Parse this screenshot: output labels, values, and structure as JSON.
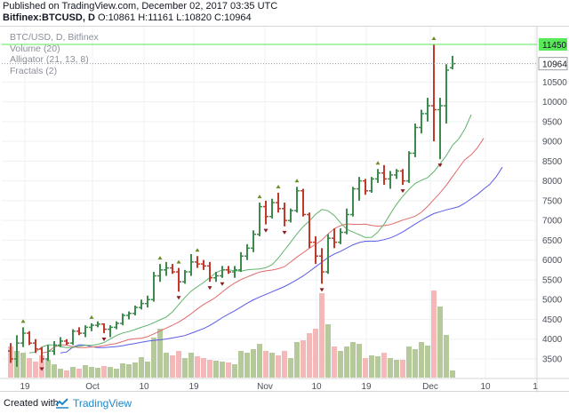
{
  "header": {
    "published_line": "Published on TradingView.com, December 02, 2017 03:35 UTC",
    "symbol": "Bitfinex:BTCUSD, D",
    "ohlc": "O:10861 H:11161 L:10820 C:10964"
  },
  "legend": {
    "title": "BTC/USD, D, Bitfinex",
    "volume": "Volume (20)",
    "alligator": "Alligator (21, 13, 8)",
    "fractals": "Fractals (2)"
  },
  "footer": {
    "created_with": "Created with",
    "brand": "TradingView"
  },
  "colors": {
    "up": "#3d8a4f",
    "down": "#c0392b",
    "jaw": "#5b5be8",
    "teeth": "#e06a6a",
    "lips": "#5fb36a",
    "vol_up": "#b5c99a",
    "vol_down": "#f4b8b8",
    "high_line": "#59e859",
    "price_tag": "#ffffff"
  },
  "chart_data": {
    "type": "ohlc-bars",
    "price_axis": [
      "11450",
      "10964",
      "10500",
      "10000",
      "9500",
      "9000",
      "8500",
      "8000",
      "7500",
      "7000",
      "6500",
      "6000",
      "5500",
      "5000",
      "4500",
      "4000",
      "3500"
    ],
    "time_axis": [
      "19",
      "Oct",
      "10",
      "19",
      "Nov",
      "10",
      "19",
      "Dec",
      "10",
      "1"
    ],
    "ylim": [
      3000,
      11750
    ],
    "high_marker": 11450,
    "last_price": 10964,
    "bars": [
      {
        "o": 3700,
        "h": 3900,
        "l": 3400,
        "c": 3500,
        "v": 0.35
      },
      {
        "o": 3500,
        "h": 4100,
        "l": 3300,
        "c": 3900,
        "v": 0.3
      },
      {
        "o": 3900,
        "h": 4300,
        "l": 3800,
        "c": 4150,
        "v": 0.28
      },
      {
        "o": 4150,
        "h": 4200,
        "l": 3850,
        "c": 3900,
        "v": 0.22
      },
      {
        "o": 3900,
        "h": 4000,
        "l": 3650,
        "c": 3750,
        "v": 0.18
      },
      {
        "o": 3750,
        "h": 3800,
        "l": 3400,
        "c": 3500,
        "v": 0.25
      },
      {
        "o": 3500,
        "h": 3850,
        "l": 3450,
        "c": 3700,
        "v": 0.2
      },
      {
        "o": 3700,
        "h": 3950,
        "l": 3600,
        "c": 3850,
        "v": 0.15
      },
      {
        "o": 3850,
        "h": 4050,
        "l": 3800,
        "c": 3950,
        "v": 0.1
      },
      {
        "o": 3950,
        "h": 4000,
        "l": 3850,
        "c": 3900,
        "v": 0.08
      },
      {
        "o": 3900,
        "h": 4250,
        "l": 3850,
        "c": 4200,
        "v": 0.12
      },
      {
        "o": 4200,
        "h": 4300,
        "l": 4100,
        "c": 4150,
        "v": 0.1
      },
      {
        "o": 4150,
        "h": 4350,
        "l": 4050,
        "c": 4300,
        "v": 0.14
      },
      {
        "o": 4300,
        "h": 4400,
        "l": 4200,
        "c": 4350,
        "v": 0.12
      },
      {
        "o": 4350,
        "h": 4450,
        "l": 4300,
        "c": 4380,
        "v": 0.11
      },
      {
        "o": 4380,
        "h": 4400,
        "l": 4150,
        "c": 4250,
        "v": 0.13
      },
      {
        "o": 4250,
        "h": 4350,
        "l": 4050,
        "c": 4300,
        "v": 0.12
      },
      {
        "o": 4300,
        "h": 4450,
        "l": 4250,
        "c": 4400,
        "v": 0.1
      },
      {
        "o": 4400,
        "h": 4650,
        "l": 4350,
        "c": 4600,
        "v": 0.16
      },
      {
        "o": 4600,
        "h": 4700,
        "l": 4500,
        "c": 4650,
        "v": 0.15
      },
      {
        "o": 4650,
        "h": 4850,
        "l": 4600,
        "c": 4800,
        "v": 0.17
      },
      {
        "o": 4800,
        "h": 5000,
        "l": 4750,
        "c": 4900,
        "v": 0.23
      },
      {
        "o": 4900,
        "h": 5100,
        "l": 4800,
        "c": 5000,
        "v": 0.18
      },
      {
        "o": 5000,
        "h": 5700,
        "l": 4950,
        "c": 5600,
        "v": 0.45
      },
      {
        "o": 5600,
        "h": 5900,
        "l": 5450,
        "c": 5750,
        "v": 0.55
      },
      {
        "o": 5750,
        "h": 5950,
        "l": 5600,
        "c": 5800,
        "v": 0.28
      },
      {
        "o": 5800,
        "h": 5900,
        "l": 5650,
        "c": 5700,
        "v": 0.25
      },
      {
        "o": 5700,
        "h": 5800,
        "l": 5200,
        "c": 5450,
        "v": 0.3
      },
      {
        "o": 5450,
        "h": 5750,
        "l": 5400,
        "c": 5700,
        "v": 0.22
      },
      {
        "o": 5700,
        "h": 6150,
        "l": 5600,
        "c": 5950,
        "v": 0.28
      },
      {
        "o": 5950,
        "h": 6100,
        "l": 5800,
        "c": 5900,
        "v": 0.24
      },
      {
        "o": 5900,
        "h": 6000,
        "l": 5750,
        "c": 5850,
        "v": 0.22
      },
      {
        "o": 5850,
        "h": 5950,
        "l": 5450,
        "c": 5550,
        "v": 0.2
      },
      {
        "o": 5550,
        "h": 5700,
        "l": 5450,
        "c": 5600,
        "v": 0.19
      },
      {
        "o": 5600,
        "h": 5850,
        "l": 5550,
        "c": 5750,
        "v": 0.18
      },
      {
        "o": 5750,
        "h": 5850,
        "l": 5650,
        "c": 5700,
        "v": 0.17
      },
      {
        "o": 5700,
        "h": 5850,
        "l": 5550,
        "c": 5750,
        "v": 0.15
      },
      {
        "o": 5750,
        "h": 6200,
        "l": 5700,
        "c": 6100,
        "v": 0.3
      },
      {
        "o": 6100,
        "h": 6400,
        "l": 6000,
        "c": 6300,
        "v": 0.28
      },
      {
        "o": 6300,
        "h": 6750,
        "l": 6200,
        "c": 6650,
        "v": 0.32
      },
      {
        "o": 6650,
        "h": 7450,
        "l": 6600,
        "c": 7350,
        "v": 0.38
      },
      {
        "o": 7350,
        "h": 7500,
        "l": 6900,
        "c": 7100,
        "v": 0.3
      },
      {
        "o": 7100,
        "h": 7550,
        "l": 7050,
        "c": 7450,
        "v": 0.28
      },
      {
        "o": 7450,
        "h": 7700,
        "l": 7200,
        "c": 7300,
        "v": 0.25
      },
      {
        "o": 7300,
        "h": 7450,
        "l": 6850,
        "c": 7000,
        "v": 0.3
      },
      {
        "o": 7000,
        "h": 7300,
        "l": 6950,
        "c": 7250,
        "v": 0.22
      },
      {
        "o": 7250,
        "h": 7850,
        "l": 7200,
        "c": 7750,
        "v": 0.4
      },
      {
        "o": 7750,
        "h": 7800,
        "l": 7100,
        "c": 7150,
        "v": 0.42
      },
      {
        "o": 7150,
        "h": 7200,
        "l": 6300,
        "c": 6450,
        "v": 0.5
      },
      {
        "o": 6450,
        "h": 6600,
        "l": 5900,
        "c": 6100,
        "v": 0.55
      },
      {
        "o": 6100,
        "h": 6300,
        "l": 5400,
        "c": 5700,
        "v": 0.95
      },
      {
        "o": 5700,
        "h": 6650,
        "l": 5650,
        "c": 6550,
        "v": 0.6
      },
      {
        "o": 6550,
        "h": 6800,
        "l": 6300,
        "c": 6450,
        "v": 0.35
      },
      {
        "o": 6450,
        "h": 6800,
        "l": 6400,
        "c": 6700,
        "v": 0.3
      },
      {
        "o": 6700,
        "h": 7300,
        "l": 6650,
        "c": 7150,
        "v": 0.35
      },
      {
        "o": 7150,
        "h": 7850,
        "l": 7100,
        "c": 7800,
        "v": 0.4
      },
      {
        "o": 7800,
        "h": 8100,
        "l": 7500,
        "c": 8000,
        "v": 0.38
      },
      {
        "o": 8000,
        "h": 8050,
        "l": 7650,
        "c": 7750,
        "v": 0.22
      },
      {
        "o": 7750,
        "h": 8100,
        "l": 7700,
        "c": 8050,
        "v": 0.25
      },
      {
        "o": 8050,
        "h": 8300,
        "l": 7950,
        "c": 8200,
        "v": 0.24
      },
      {
        "o": 8200,
        "h": 8400,
        "l": 7900,
        "c": 8050,
        "v": 0.28
      },
      {
        "o": 8050,
        "h": 8250,
        "l": 7800,
        "c": 8150,
        "v": 0.22
      },
      {
        "o": 8150,
        "h": 8300,
        "l": 8050,
        "c": 8250,
        "v": 0.2
      },
      {
        "o": 8250,
        "h": 8300,
        "l": 7900,
        "c": 8000,
        "v": 0.2
      },
      {
        "o": 8000,
        "h": 8750,
        "l": 7950,
        "c": 8700,
        "v": 0.35
      },
      {
        "o": 8700,
        "h": 9450,
        "l": 8600,
        "c": 9350,
        "v": 0.32
      },
      {
        "o": 9350,
        "h": 9800,
        "l": 9200,
        "c": 9700,
        "v": 0.4
      },
      {
        "o": 9700,
        "h": 10100,
        "l": 9500,
        "c": 9900,
        "v": 0.36
      },
      {
        "o": 9900,
        "h": 11450,
        "l": 9000,
        "c": 9800,
        "v": 0.98
      },
      {
        "o": 9800,
        "h": 10100,
        "l": 8550,
        "c": 9900,
        "v": 0.8
      },
      {
        "o": 9900,
        "h": 10950,
        "l": 9450,
        "c": 10800,
        "v": 0.48
      },
      {
        "o": 10861,
        "h": 11161,
        "l": 10820,
        "c": 10964,
        "v": 0.08
      }
    ],
    "fractals_up": [
      2,
      13,
      24,
      27,
      30,
      40,
      43,
      46,
      59,
      68
    ],
    "fractals_down": [
      5,
      15,
      27,
      32,
      34,
      41,
      44,
      50,
      63,
      69
    ]
  }
}
